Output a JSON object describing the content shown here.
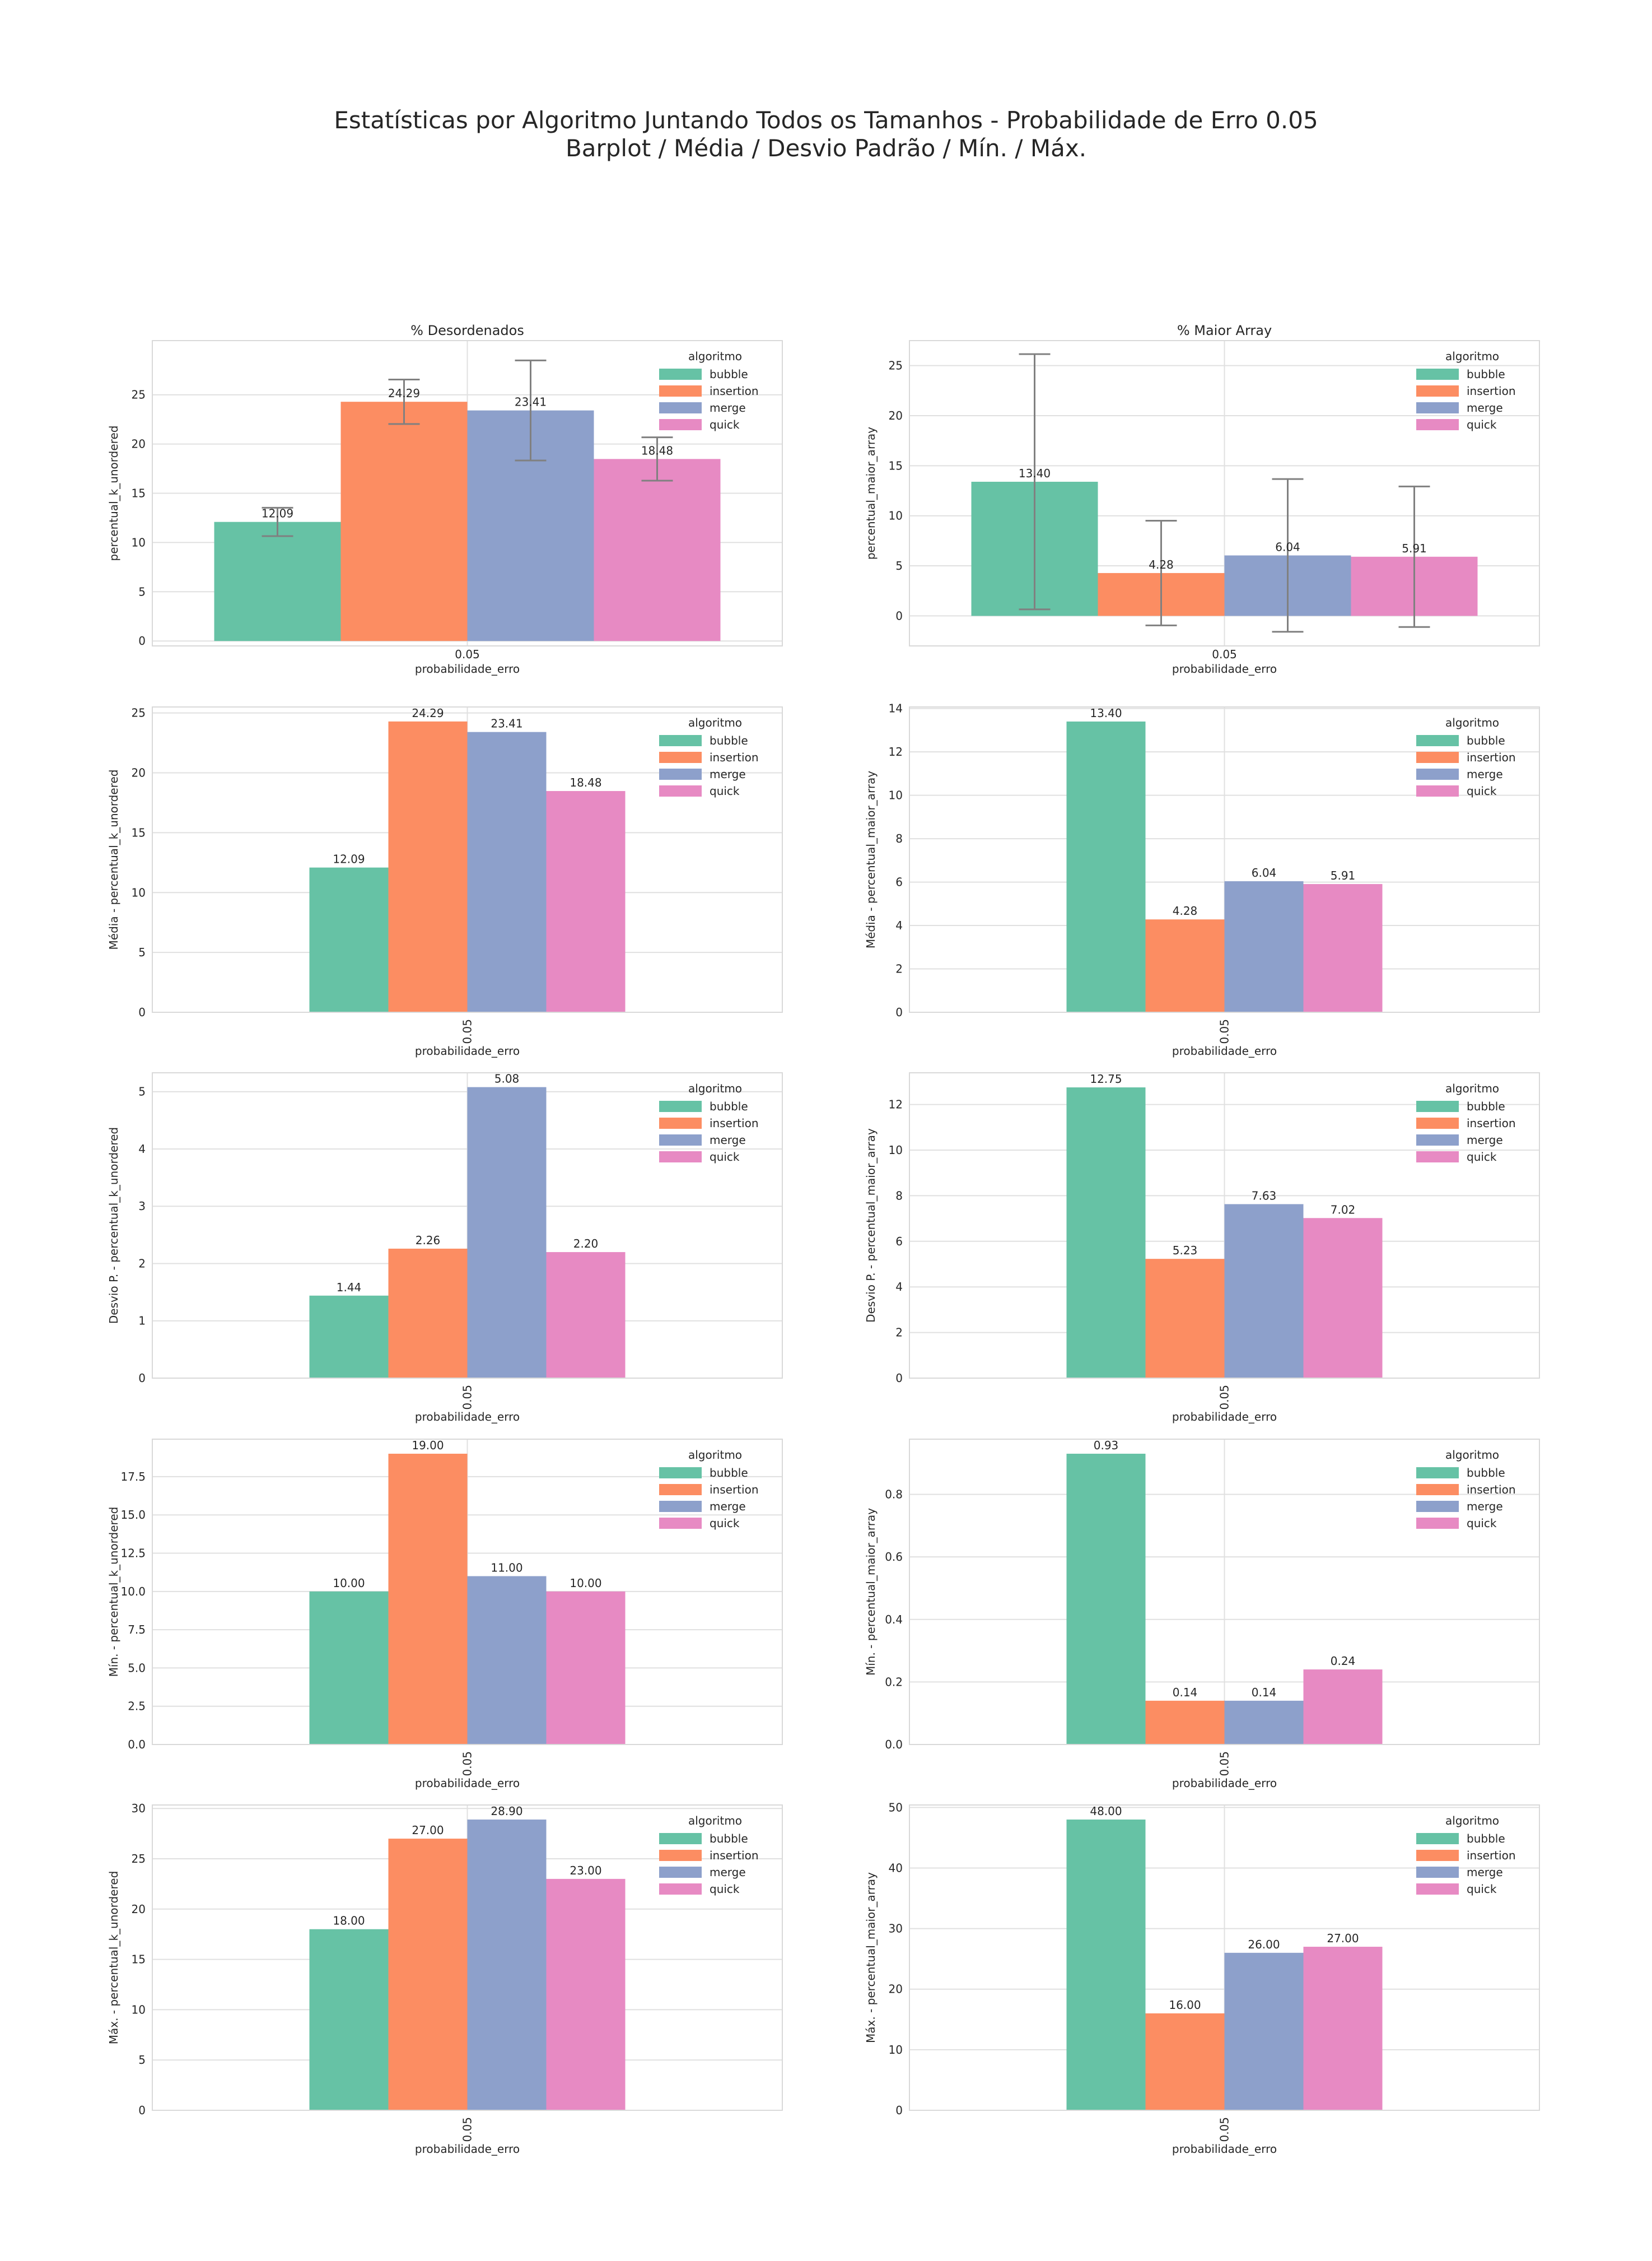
{
  "figure": {
    "title_line1": "Estatísticas por Algoritmo Juntando Todos os Tamanhos - Probabilidade de Erro 0.05",
    "title_line2": "Barplot / Média / Desvio Padrão / Mín. / Máx."
  },
  "colors": {
    "bubble": "#66c2a5",
    "insertion": "#fc8d62",
    "merge": "#8da0cb",
    "quick": "#e78ac3",
    "errorbar": "#808080",
    "grid": "#e0e0e0"
  },
  "chart_data": [
    {
      "type": "bar",
      "title": "% Desordenados",
      "xlabel": "probabilidade_erro",
      "ylabel": "percentual_k_unordered",
      "categories": [
        "0.05"
      ],
      "ylim": [
        -0.5,
        30.5
      ],
      "yticks": [
        0,
        5,
        10,
        15,
        20,
        25
      ],
      "tick_decimals": 0,
      "xtick_rotation": 0,
      "error_bars": true,
      "legend_title": "algoritmo",
      "legend_position": "top-right",
      "grid": true,
      "series": [
        {
          "name": "bubble",
          "values": [
            12.09
          ],
          "labels": [
            "12.09"
          ],
          "err": [
            1.44
          ]
        },
        {
          "name": "insertion",
          "values": [
            24.29
          ],
          "labels": [
            "24.29"
          ],
          "err": [
            2.26
          ]
        },
        {
          "name": "merge",
          "values": [
            23.41
          ],
          "labels": [
            "23.41"
          ],
          "err": [
            5.08
          ]
        },
        {
          "name": "quick",
          "values": [
            18.48
          ],
          "labels": [
            "18.48"
          ],
          "err": [
            2.2
          ]
        }
      ]
    },
    {
      "type": "bar",
      "title": "% Maior Array",
      "xlabel": "probabilidade_erro",
      "ylabel": "percentual_maior_array",
      "categories": [
        "0.05"
      ],
      "ylim": [
        -3,
        27.5
      ],
      "yticks": [
        0,
        5,
        10,
        15,
        20,
        25
      ],
      "tick_decimals": 0,
      "xtick_rotation": 0,
      "error_bars": true,
      "legend_title": "algoritmo",
      "legend_position": "top-right",
      "grid": true,
      "series": [
        {
          "name": "bubble",
          "values": [
            13.4
          ],
          "labels": [
            "13.40"
          ],
          "err": [
            12.75
          ]
        },
        {
          "name": "insertion",
          "values": [
            4.28
          ],
          "labels": [
            "4.28"
          ],
          "err": [
            5.23
          ]
        },
        {
          "name": "merge",
          "values": [
            6.04
          ],
          "labels": [
            "6.04"
          ],
          "err": [
            7.63
          ]
        },
        {
          "name": "quick",
          "values": [
            5.91
          ],
          "labels": [
            "5.91"
          ],
          "err": [
            7.02
          ]
        }
      ]
    },
    {
      "type": "bar",
      "title": "",
      "xlabel": "probabilidade_erro",
      "ylabel": "Média - percentual_k_unordered",
      "categories": [
        "0.05"
      ],
      "ylim": [
        0,
        25.5
      ],
      "yticks": [
        0,
        5,
        10,
        15,
        20,
        25
      ],
      "tick_decimals": 0,
      "xtick_rotation": 90,
      "error_bars": false,
      "legend_title": "algoritmo",
      "legend_position": "top-right",
      "grid": true,
      "series": [
        {
          "name": "bubble",
          "values": [
            12.09
          ],
          "labels": [
            "12.09"
          ]
        },
        {
          "name": "insertion",
          "values": [
            24.29
          ],
          "labels": [
            "24.29"
          ]
        },
        {
          "name": "merge",
          "values": [
            23.41
          ],
          "labels": [
            "23.41"
          ]
        },
        {
          "name": "quick",
          "values": [
            18.48
          ],
          "labels": [
            "18.48"
          ]
        }
      ]
    },
    {
      "type": "bar",
      "title": "",
      "xlabel": "probabilidade_erro",
      "ylabel": "Média - percentual_maior_array",
      "categories": [
        "0.05"
      ],
      "ylim": [
        0,
        14.07
      ],
      "yticks": [
        0,
        2,
        4,
        6,
        8,
        10,
        12,
        14
      ],
      "tick_decimals": 0,
      "xtick_rotation": 90,
      "error_bars": false,
      "legend_title": "algoritmo",
      "legend_position": "top-right",
      "grid": true,
      "series": [
        {
          "name": "bubble",
          "values": [
            13.4
          ],
          "labels": [
            "13.40"
          ]
        },
        {
          "name": "insertion",
          "values": [
            4.28
          ],
          "labels": [
            "4.28"
          ]
        },
        {
          "name": "merge",
          "values": [
            6.04
          ],
          "labels": [
            "6.04"
          ]
        },
        {
          "name": "quick",
          "values": [
            5.91
          ],
          "labels": [
            "5.91"
          ]
        }
      ]
    },
    {
      "type": "bar",
      "title": "",
      "xlabel": "probabilidade_erro",
      "ylabel": "Desvio P. - percentual_k_unordered",
      "categories": [
        "0.05"
      ],
      "ylim": [
        0,
        5.33
      ],
      "yticks": [
        0,
        1,
        2,
        3,
        4,
        5
      ],
      "tick_decimals": 0,
      "xtick_rotation": 90,
      "error_bars": false,
      "legend_title": "algoritmo",
      "legend_position": "top-right",
      "grid": true,
      "series": [
        {
          "name": "bubble",
          "values": [
            1.44
          ],
          "labels": [
            "1.44"
          ]
        },
        {
          "name": "insertion",
          "values": [
            2.26
          ],
          "labels": [
            "2.26"
          ]
        },
        {
          "name": "merge",
          "values": [
            5.08
          ],
          "labels": [
            "5.08"
          ]
        },
        {
          "name": "quick",
          "values": [
            2.2
          ],
          "labels": [
            "2.20"
          ]
        }
      ]
    },
    {
      "type": "bar",
      "title": "",
      "xlabel": "probabilidade_erro",
      "ylabel": "Desvio P. - percentual_maior_array",
      "categories": [
        "0.05"
      ],
      "ylim": [
        0,
        13.39
      ],
      "yticks": [
        0,
        2,
        4,
        6,
        8,
        10,
        12
      ],
      "tick_decimals": 0,
      "xtick_rotation": 90,
      "error_bars": false,
      "legend_title": "algoritmo",
      "legend_position": "top-right",
      "grid": true,
      "series": [
        {
          "name": "bubble",
          "values": [
            12.75
          ],
          "labels": [
            "12.75"
          ]
        },
        {
          "name": "insertion",
          "values": [
            5.23
          ],
          "labels": [
            "5.23"
          ]
        },
        {
          "name": "merge",
          "values": [
            7.63
          ],
          "labels": [
            "7.63"
          ]
        },
        {
          "name": "quick",
          "values": [
            7.02
          ],
          "labels": [
            "7.02"
          ]
        }
      ]
    },
    {
      "type": "bar",
      "title": "",
      "xlabel": "probabilidade_erro",
      "ylabel": "Mín. - percentual_k_unordered",
      "categories": [
        "0.05"
      ],
      "ylim": [
        0,
        19.95
      ],
      "yticks": [
        0,
        2.5,
        5,
        7.5,
        10,
        12.5,
        15,
        17.5
      ],
      "tick_decimals": 1,
      "xtick_rotation": 90,
      "error_bars": false,
      "legend_title": "algoritmo",
      "legend_position": "top-right",
      "grid": true,
      "series": [
        {
          "name": "bubble",
          "values": [
            10.0
          ],
          "labels": [
            "10.00"
          ]
        },
        {
          "name": "insertion",
          "values": [
            19.0
          ],
          "labels": [
            "19.00"
          ]
        },
        {
          "name": "merge",
          "values": [
            11.0
          ],
          "labels": [
            "11.00"
          ]
        },
        {
          "name": "quick",
          "values": [
            10.0
          ],
          "labels": [
            "10.00"
          ]
        }
      ]
    },
    {
      "type": "bar",
      "title": "",
      "xlabel": "probabilidade_erro",
      "ylabel": "Mín. - percentual_maior_array",
      "categories": [
        "0.05"
      ],
      "ylim": [
        0,
        0.9765
      ],
      "yticks": [
        0,
        0.2,
        0.4,
        0.6,
        0.8
      ],
      "tick_decimals": 1,
      "xtick_rotation": 90,
      "error_bars": false,
      "legend_title": "algoritmo",
      "legend_position": "top-right",
      "grid": true,
      "series": [
        {
          "name": "bubble",
          "values": [
            0.93
          ],
          "labels": [
            "0.93"
          ]
        },
        {
          "name": "insertion",
          "values": [
            0.14
          ],
          "labels": [
            "0.14"
          ]
        },
        {
          "name": "merge",
          "values": [
            0.14
          ],
          "labels": [
            "0.14"
          ]
        },
        {
          "name": "quick",
          "values": [
            0.24
          ],
          "labels": [
            "0.24"
          ]
        }
      ]
    },
    {
      "type": "bar",
      "title": "",
      "xlabel": "probabilidade_erro",
      "ylabel": "Máx. - percentual_k_unordered",
      "categories": [
        "0.05"
      ],
      "ylim": [
        0,
        30.345
      ],
      "yticks": [
        0,
        5,
        10,
        15,
        20,
        25,
        30
      ],
      "tick_decimals": 0,
      "xtick_rotation": 90,
      "error_bars": false,
      "legend_title": "algoritmo",
      "legend_position": "top-right",
      "grid": true,
      "series": [
        {
          "name": "bubble",
          "values": [
            18.0
          ],
          "labels": [
            "18.00"
          ]
        },
        {
          "name": "insertion",
          "values": [
            27.0
          ],
          "labels": [
            "27.00"
          ]
        },
        {
          "name": "merge",
          "values": [
            28.9
          ],
          "labels": [
            "28.90"
          ]
        },
        {
          "name": "quick",
          "values": [
            23.0
          ],
          "labels": [
            "23.00"
          ]
        }
      ]
    },
    {
      "type": "bar",
      "title": "",
      "xlabel": "probabilidade_erro",
      "ylabel": "Máx. - percentual_maior_array",
      "categories": [
        "0.05"
      ],
      "ylim": [
        0,
        50.4
      ],
      "yticks": [
        0,
        10,
        20,
        30,
        40,
        50
      ],
      "tick_decimals": 0,
      "xtick_rotation": 90,
      "error_bars": false,
      "legend_title": "algoritmo",
      "legend_position": "top-right",
      "grid": true,
      "series": [
        {
          "name": "bubble",
          "values": [
            48.0
          ],
          "labels": [
            "48.00"
          ]
        },
        {
          "name": "insertion",
          "values": [
            16.0
          ],
          "labels": [
            "16.00"
          ]
        },
        {
          "name": "merge",
          "values": [
            26.0
          ],
          "labels": [
            "26.00"
          ]
        },
        {
          "name": "quick",
          "values": [
            27.0
          ],
          "labels": [
            "27.00"
          ]
        }
      ]
    }
  ]
}
